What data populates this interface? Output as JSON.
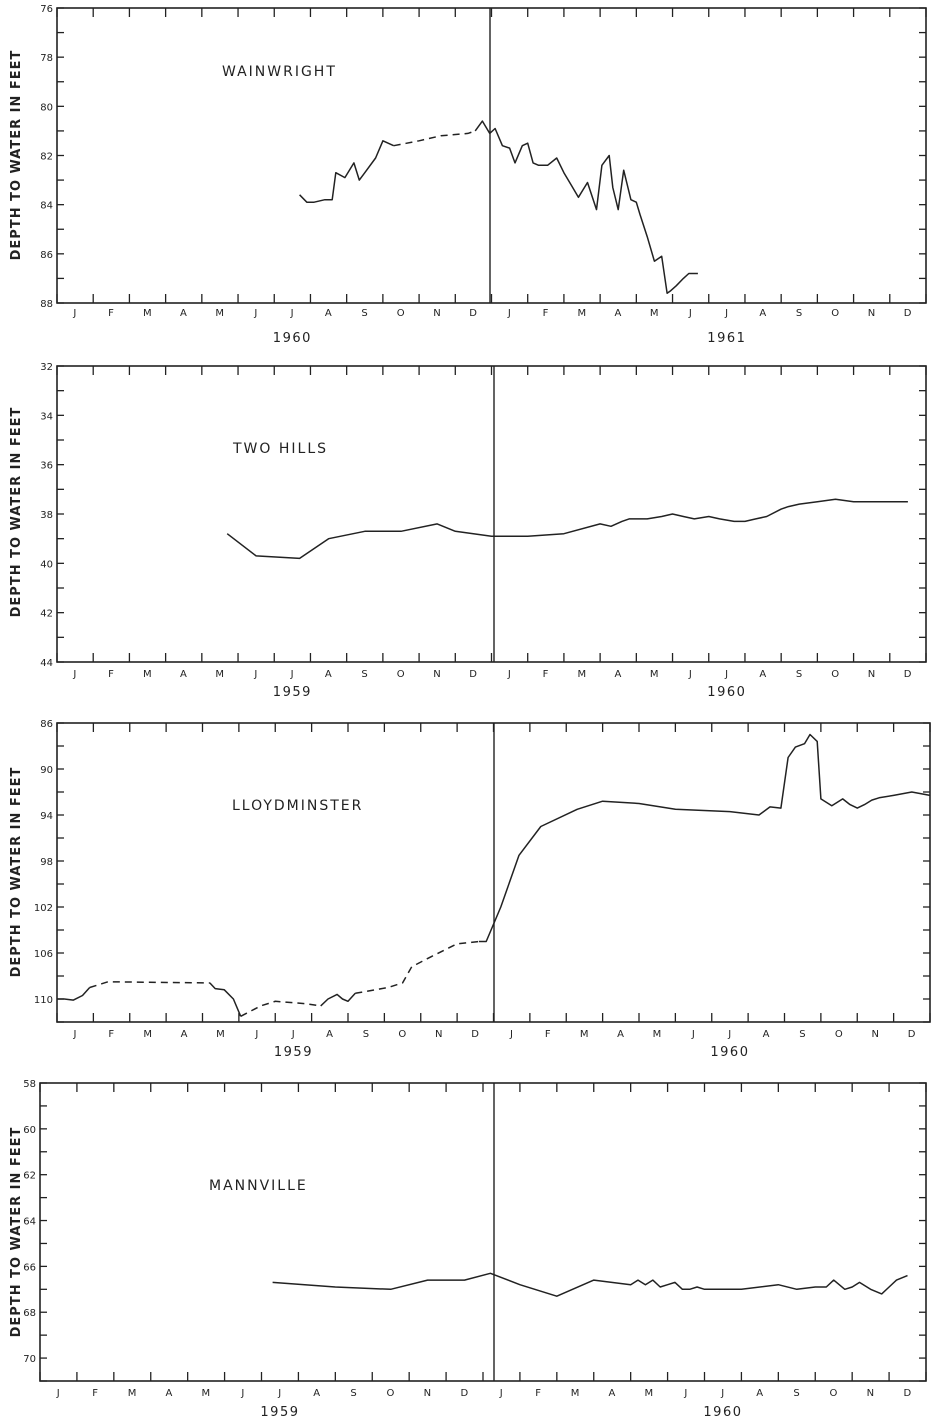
{
  "chart_data": [
    {
      "type": "line",
      "title": "WAINWRIGHT",
      "ylabel": "DEPTH TO WATER IN FEET",
      "ylim": [
        76,
        88
      ],
      "y_inverted": true,
      "y_ticks": [
        "76",
        "78",
        "80",
        "82",
        "84",
        "86",
        "88"
      ],
      "months": [
        "J",
        "F",
        "M",
        "A",
        "M",
        "J",
        "J",
        "A",
        "S",
        "O",
        "N",
        "D",
        "J",
        "F",
        "M",
        "A",
        "M",
        "J",
        "J",
        "A",
        "S",
        "O",
        "N",
        "D"
      ],
      "years": [
        "1960",
        "1961"
      ],
      "x_unit": "month index from January of first year (0 = Jan 1, 24 = end of second year)",
      "series": [
        {
          "style": "solid",
          "x": [
            6.7,
            6.9,
            7.1,
            7.4,
            7.6,
            7.7,
            7.95,
            8.2,
            8.35,
            8.5,
            8.8,
            9.0,
            9.3
          ],
          "y": [
            83.6,
            83.9,
            83.9,
            83.8,
            83.8,
            82.7,
            82.9,
            82.3,
            83.0,
            82.7,
            82.1,
            81.4,
            81.6
          ]
        },
        {
          "style": "dashed",
          "x": [
            9.3,
            10.0,
            10.6,
            11.35,
            11.55
          ],
          "y": [
            81.6,
            81.4,
            81.2,
            81.1,
            81.0
          ]
        },
        {
          "style": "solid",
          "x": [
            11.55,
            11.75,
            11.95,
            12.1,
            12.3,
            12.5,
            12.65,
            12.85,
            13.0,
            13.15,
            13.3,
            13.55,
            13.8,
            14.0,
            14.2,
            14.4,
            14.65,
            14.9,
            15.05,
            15.25,
            15.35,
            15.5,
            15.65,
            15.85,
            16.0,
            16.1,
            16.3,
            16.5,
            16.7,
            16.85,
            16.95,
            17.1,
            17.3,
            17.45,
            17.7
          ],
          "y": [
            81.0,
            80.6,
            81.1,
            80.9,
            81.6,
            81.7,
            82.3,
            81.6,
            81.5,
            82.3,
            82.4,
            82.4,
            82.1,
            82.7,
            83.2,
            83.7,
            83.1,
            84.2,
            82.4,
            82.0,
            83.3,
            84.2,
            82.6,
            83.8,
            83.9,
            84.4,
            85.3,
            86.3,
            86.1,
            87.6,
            87.5,
            87.3,
            87.0,
            86.8,
            86.8
          ]
        }
      ]
    },
    {
      "type": "line",
      "title": "TWO HILLS",
      "ylabel": "DEPTH TO WATER IN FEET",
      "ylim": [
        32,
        44
      ],
      "y_inverted": true,
      "y_ticks": [
        "32",
        "34",
        "36",
        "38",
        "40",
        "42",
        "44"
      ],
      "months": [
        "J",
        "F",
        "M",
        "A",
        "M",
        "J",
        "J",
        "A",
        "S",
        "O",
        "N",
        "D",
        "J",
        "F",
        "M",
        "A",
        "M",
        "J",
        "J",
        "A",
        "S",
        "O",
        "N",
        "D"
      ],
      "years": [
        "1959",
        "1960"
      ],
      "x_unit": "month index from January of first year (0 = Jan 1, 24 = end of second year)",
      "series": [
        {
          "style": "solid",
          "x": [
            4.7,
            5.5,
            6.7,
            7.5,
            8.5,
            9.5,
            10.5,
            11.0,
            12.0,
            13.0,
            14.0,
            15.0,
            15.3,
            15.6,
            15.8,
            16.0,
            16.3,
            16.7,
            17.0,
            17.3,
            17.6,
            18.0,
            18.3,
            18.7,
            19.0,
            19.3,
            19.6,
            20.0,
            20.2,
            20.5,
            21.0,
            21.5,
            22.0,
            22.5,
            23.0,
            23.5
          ],
          "y": [
            38.8,
            39.7,
            39.8,
            39.0,
            38.7,
            38.7,
            38.4,
            38.7,
            38.9,
            38.9,
            38.8,
            38.4,
            38.5,
            38.3,
            38.2,
            38.2,
            38.2,
            38.1,
            38.0,
            38.1,
            38.2,
            38.1,
            38.2,
            38.3,
            38.3,
            38.2,
            38.1,
            37.8,
            37.7,
            37.6,
            37.5,
            37.4,
            37.5,
            37.5,
            37.5,
            37.5
          ]
        }
      ]
    },
    {
      "type": "line",
      "title": "LLOYDMINSTER",
      "ylabel": "DEPTH TO WATER IN FEET",
      "ylim": [
        86,
        112
      ],
      "y_inverted": true,
      "y_ticks": [
        "86",
        "90",
        "94",
        "98",
        "102",
        "106",
        "110"
      ],
      "months": [
        "J",
        "F",
        "M",
        "A",
        "M",
        "J",
        "J",
        "A",
        "S",
        "O",
        "N",
        "D",
        "J",
        "F",
        "M",
        "A",
        "M",
        "J",
        "J",
        "A",
        "S",
        "O",
        "N",
        "D"
      ],
      "years": [
        "1959",
        "1960"
      ],
      "x_unit": "month index from January of first year (0 = Jan 1, 24 = end of second year)",
      "series": [
        {
          "style": "solid",
          "x": [
            0,
            0.2,
            0.45,
            0.7,
            0.9
          ],
          "y": [
            110.0,
            110.0,
            110.1,
            109.7,
            109.0
          ]
        },
        {
          "style": "dashed",
          "x": [
            0.9,
            1.4,
            4.2
          ],
          "y": [
            109.0,
            108.5,
            108.6
          ]
        },
        {
          "style": "solid",
          "x": [
            4.2,
            4.35,
            4.6,
            4.85,
            5.05
          ],
          "y": [
            108.6,
            109.1,
            109.2,
            110.0,
            111.5
          ]
        },
        {
          "style": "dashed",
          "x": [
            5.05,
            5.6,
            6.0,
            6.8,
            7.25
          ],
          "y": [
            111.5,
            110.6,
            110.2,
            110.4,
            110.6
          ]
        },
        {
          "style": "solid",
          "x": [
            7.25,
            7.45,
            7.7,
            7.85,
            8.0,
            8.2
          ],
          "y": [
            110.6,
            110.0,
            109.6,
            110.0,
            110.2,
            109.5
          ]
        },
        {
          "style": "dashed",
          "x": [
            8.2,
            9.1,
            9.5,
            9.75,
            10.3,
            11.0,
            11.6
          ],
          "y": [
            109.5,
            109.0,
            108.6,
            107.2,
            106.3,
            105.2,
            105.0
          ]
        },
        {
          "style": "solid",
          "x": [
            11.6,
            11.8,
            12.2,
            12.7,
            13.3,
            14.3,
            15.0,
            16.0,
            17.0,
            18.5,
            19.3,
            19.6,
            19.9,
            20.1,
            20.3,
            20.55,
            20.7,
            20.9,
            21.0,
            21.3,
            21.6,
            21.8,
            22.0,
            22.2,
            22.4,
            22.6,
            23.0,
            23.5,
            24.0
          ],
          "y": [
            105.0,
            105.0,
            102.0,
            97.5,
            95.0,
            93.5,
            92.8,
            93.0,
            93.5,
            93.7,
            94.0,
            93.3,
            93.4,
            89.0,
            88.1,
            87.8,
            87.0,
            87.6,
            92.6,
            93.2,
            92.6,
            93.1,
            93.4,
            93.1,
            92.7,
            92.5,
            92.3,
            92.0,
            92.3
          ]
        }
      ]
    },
    {
      "type": "line",
      "title": "MANNVILLE",
      "ylabel": "DEPTH TO WATER IN FEET",
      "ylim": [
        58,
        71
      ],
      "y_inverted": true,
      "y_ticks": [
        "58",
        "60",
        "62",
        "64",
        "66",
        "68",
        "70"
      ],
      "months": [
        "J",
        "F",
        "M",
        "A",
        "M",
        "J",
        "J",
        "A",
        "S",
        "O",
        "N",
        "D",
        "J",
        "F",
        "M",
        "A",
        "M",
        "J",
        "J",
        "A",
        "S",
        "O",
        "N",
        "D"
      ],
      "years": [
        "1959",
        "1960"
      ],
      "x_unit": "month index from January of first year (0 = Jan 1, 24 = end of second year)",
      "series": [
        {
          "style": "solid",
          "x": [
            6.3,
            8.0,
            9.5,
            10.5,
            11.5,
            12.2,
            13.0,
            14.0,
            15.0,
            16.0,
            16.2,
            16.4,
            16.6,
            16.8,
            17.0,
            17.2,
            17.4,
            17.6,
            17.8,
            18.0,
            18.3,
            19.0,
            20.0,
            20.5,
            21.0,
            21.3,
            21.5,
            21.8,
            22.0,
            22.2,
            22.5,
            22.8,
            23.0,
            23.2,
            23.5
          ],
          "y": [
            66.7,
            66.9,
            67.0,
            66.6,
            66.6,
            66.3,
            66.8,
            67.3,
            66.6,
            66.8,
            66.6,
            66.8,
            66.6,
            66.9,
            66.8,
            66.7,
            67.0,
            67.0,
            66.9,
            67.0,
            67.0,
            67.0,
            66.8,
            67.0,
            66.9,
            66.9,
            66.6,
            67.0,
            66.9,
            66.7,
            67.0,
            67.2,
            66.9,
            66.6,
            66.4
          ]
        }
      ]
    }
  ]
}
